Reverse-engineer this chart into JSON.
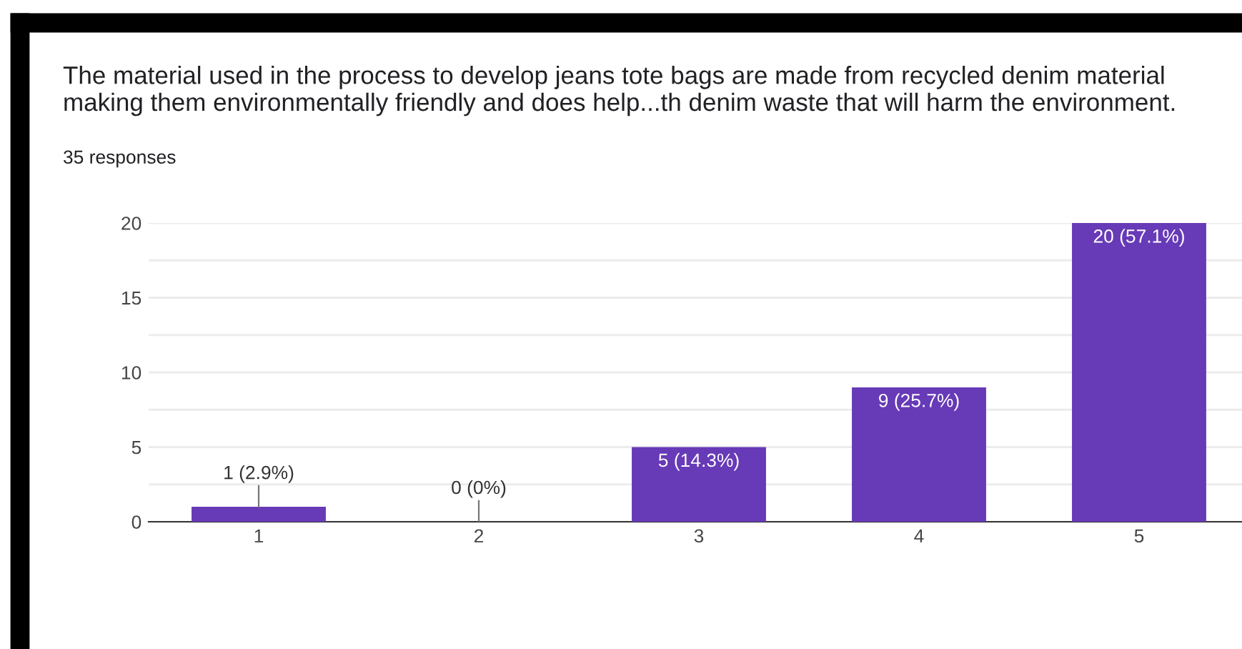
{
  "chart_data": {
    "type": "bar",
    "title": "The material used in the process to develop jeans tote bags are made from recycled denim material making them environmentally friendly and does help...th denim waste that will harm the environment.",
    "subtitle": "35 responses",
    "categories": [
      "1",
      "2",
      "3",
      "4",
      "5"
    ],
    "values": [
      1,
      0,
      5,
      9,
      20
    ],
    "value_labels": [
      "1 (2.9%)",
      "0 (0%)",
      "5 (14.3%)",
      "9 (25.7%)",
      "20 (57.1%)"
    ],
    "color": "#673ab7",
    "ylim": [
      0,
      20
    ],
    "yticks": [
      0,
      {
        "value": 2.5,
        "label": null
      },
      5,
      {
        "value": 7.5,
        "label": null
      },
      10,
      {
        "value": 12.5,
        "label": null
      },
      15,
      {
        "value": 17.5,
        "label": null
      },
      20
    ],
    "grid": "y"
  }
}
